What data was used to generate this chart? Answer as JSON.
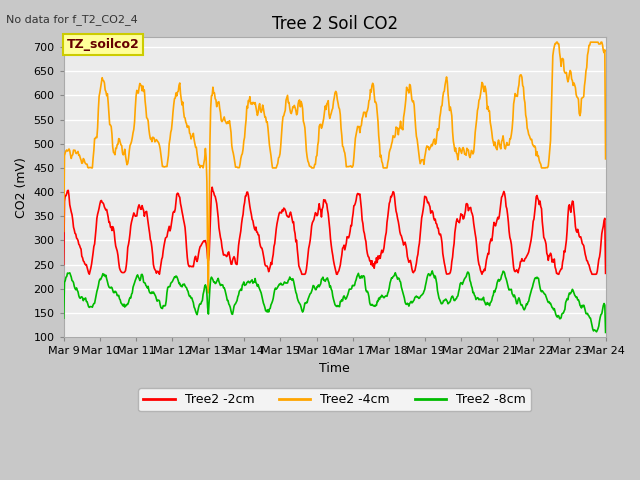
{
  "title": "Tree 2 Soil CO2",
  "subtitle": "No data for f_T2_CO2_4",
  "xlabel": "Time",
  "ylabel": "CO2 (mV)",
  "ylim": [
    100,
    720
  ],
  "yticks": [
    100,
    150,
    200,
    250,
    300,
    350,
    400,
    450,
    500,
    550,
    600,
    650,
    700
  ],
  "xtick_labels": [
    "Mar 9",
    "Mar 10",
    "Mar 11",
    "Mar 12",
    "Mar 13",
    "Mar 14",
    "Mar 15",
    "Mar 16",
    "Mar 17",
    "Mar 18",
    "Mar 19",
    "Mar 20",
    "Mar 21",
    "Mar 22",
    "Mar 23",
    "Mar 24"
  ],
  "legend_labels": [
    "Tree2 -2cm",
    "Tree2 -4cm",
    "Tree2 -8cm"
  ],
  "line_colors": [
    "#ff0000",
    "#ffa500",
    "#00bb00"
  ],
  "line_width": 1.2,
  "plot_bg_color": "#ebebeb",
  "fig_bg_color": "#c8c8c8",
  "grid_color": "#ffffff",
  "annotation_box": "TZ_soilco2",
  "annotation_box_color": "#ffff99",
  "annotation_border": "#cccc00",
  "title_fontsize": 12,
  "label_fontsize": 9,
  "tick_fontsize": 8
}
